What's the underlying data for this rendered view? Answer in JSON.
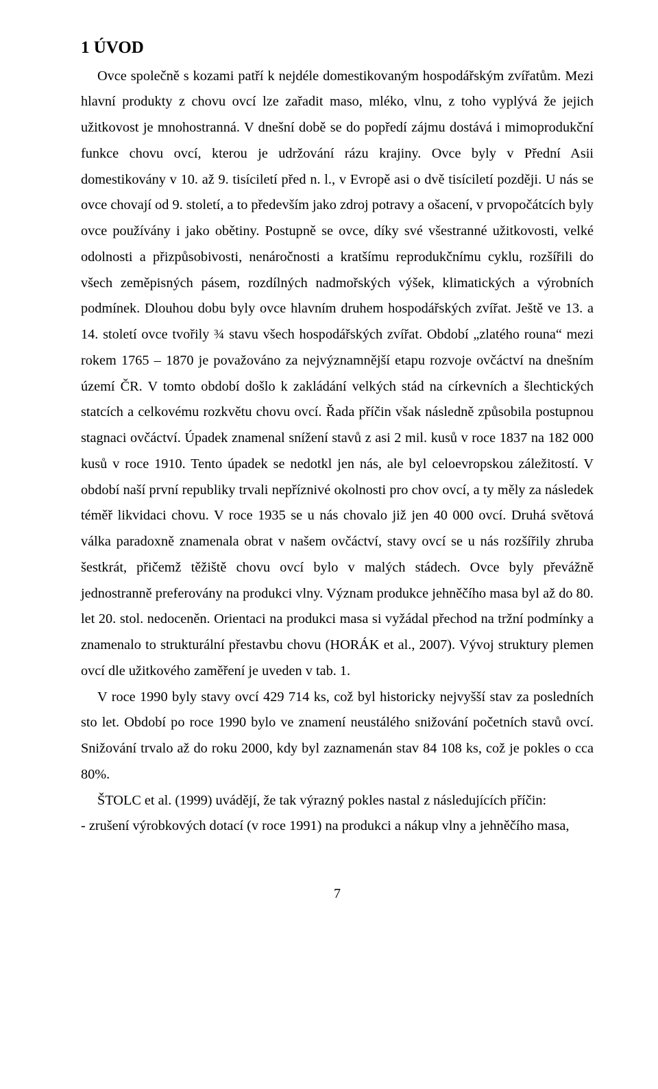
{
  "colors": {
    "background": "#ffffff",
    "text": "#000000"
  },
  "typography": {
    "font_family": "Times New Roman",
    "heading_fontsize_pt": 19,
    "body_fontsize_pt": 15,
    "line_height": 1.86,
    "alignment": "justify"
  },
  "heading": "1 ÚVOD",
  "paragraphs": {
    "p1": "Ovce společně s kozami patří k nejdéle domestikovaným hospodářským zvířatům. Mezi hlavní produkty z chovu ovcí lze zařadit maso, mléko, vlnu, z toho vyplývá že jejich užitkovost je mnohostranná. V dnešní době se do popředí zájmu dostává i mimoprodukční funkce chovu ovcí, kterou je udržování rázu krajiny.   Ovce byly v Přední Asii domestikovány v 10. až 9. tisíciletí před n. l., v Evropě asi o dvě tisíciletí později. U nás se ovce chovají od 9. století, a to především jako zdroj potravy a ošacení, v prvopočátcích byly ovce používány i jako obětiny. Postupně se ovce, díky své všestranné užitkovosti, velké odolnosti a přizpůsobivosti, nenáročnosti a kratšímu reprodukčnímu cyklu, rozšířili do všech zeměpisných pásem, rozdílných nadmořských výšek, klimatických a výrobních podmínek. Dlouhou dobu byly ovce hlavním druhem hospodářských zvířat. Ještě ve 13. a 14. století ovce tvořily ¾ stavu všech hospodářských zvířat. Období „zlatého rouna“ mezi rokem 1765 – 1870 je považováno za nejvýznamnější etapu rozvoje ovčáctví na dnešním území ČR. V tomto období došlo k zakládání velkých stád na církevních a šlechtických statcích a celkovému rozkvětu chovu ovcí. Řada příčin však následně způsobila postupnou stagnaci ovčáctví. Úpadek znamenal snížení stavů z asi 2 mil. kusů v roce 1837 na 182 000 kusů v roce 1910. Tento úpadek se nedotkl jen nás, ale byl celoevropskou záležitostí. V období naší první republiky trvali nepříznivé okolnosti pro chov ovcí, a ty měly za následek téměř likvidaci chovu. V roce 1935 se u nás chovalo již jen 40 000 ovcí. Druhá světová válka paradoxně znamenala obrat v našem ovčáctví, stavy ovcí se u nás rozšířily zhruba šestkrát, přičemž těžiště chovu ovcí bylo v malých stádech. Ovce byly převážně jednostranně preferovány na produkci vlny. Význam produkce jehněčího masa byl až do 80. let 20. stol. nedoceněn. Orientaci na produkci masa si vyžádal přechod na tržní podmínky a znamenalo to strukturální přestavbu chovu (HORÁK et al., 2007). Vývoj struktury plemen ovcí dle užitkového zaměření je uveden v tab. 1.",
    "p2": "V roce 1990 byly stavy ovcí 429 714 ks, což byl historicky nejvyšší stav za posledních sto let. Období po roce 1990 bylo ve znamení neustálého snižování početních stavů ovcí. Snižování trvalo až do roku 2000, kdy byl zaznamenán stav 84 108 ks, což je pokles o cca 80%.",
    "p3": "ŠTOLC et al. (1999) uvádějí, že tak výrazný pokles nastal z následujících příčin:"
  },
  "list": {
    "item1": "- zrušení výrobkových dotací (v roce 1991) na produkci a nákup vlny a jehněčího masa,"
  },
  "page_number": "7"
}
